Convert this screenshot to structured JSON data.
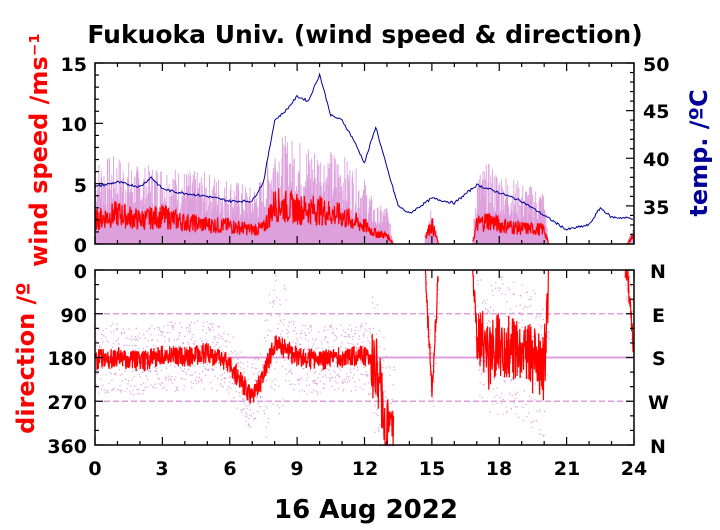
{
  "chart_data": {
    "type": "line",
    "title": "Fukuoka Univ. (wind speed & direction)",
    "xlabel": "16 Aug 2022",
    "x_ticks": [
      "0",
      "3",
      "6",
      "9",
      "12",
      "15",
      "18",
      "21",
      "24"
    ],
    "xlim": [
      0,
      24
    ],
    "panels": [
      {
        "name": "wind",
        "ylabel": "wind speed /ms⁻¹",
        "ylim": [
          0,
          15
        ],
        "y_ticks": [
          "0",
          "5",
          "10",
          "15"
        ],
        "y2label": "temp. /ºC",
        "y2lim": [
          31,
          50
        ],
        "y2_ticks": [
          "35",
          "40",
          "45",
          "50"
        ],
        "colors": {
          "gust": "#dda0dd",
          "speed": "#ff0000",
          "temperature": "#000099"
        },
        "gust": {
          "x": [
            0,
            1,
            2,
            3,
            4,
            5,
            6,
            7,
            7.5,
            8,
            9,
            10,
            11,
            12,
            12.5,
            13,
            13.3,
            14.5,
            15,
            15.3,
            16.8,
            17,
            17.5,
            18,
            19,
            20,
            20.2,
            23.7,
            24
          ],
          "y": [
            5.2,
            5.5,
            4.8,
            5.0,
            4.6,
            4.4,
            4.1,
            3.5,
            4.2,
            6.8,
            6.5,
            6.0,
            5.6,
            4.1,
            2.3,
            2.5,
            0,
            0,
            2.9,
            0,
            0,
            4.5,
            5.0,
            4.6,
            3.8,
            3.4,
            0,
            0,
            1.6
          ]
        },
        "speed": {
          "x": [
            0,
            1,
            2,
            3,
            4,
            5,
            6,
            7,
            7.5,
            8,
            9,
            10,
            11,
            12,
            12.5,
            13,
            13.3,
            14.5,
            15,
            15.3,
            16.8,
            17,
            17.5,
            18,
            19,
            20,
            20.2,
            23.7,
            24
          ],
          "y": [
            2.0,
            2.5,
            2.0,
            2.3,
            1.8,
            1.6,
            1.5,
            1.2,
            1.3,
            3.3,
            2.9,
            2.8,
            2.3,
            1.5,
            0.9,
            0.7,
            0,
            0,
            1.6,
            0,
            0,
            1.6,
            2.0,
            1.6,
            1.3,
            1.2,
            0,
            0,
            0.8
          ]
        },
        "temperature": {
          "x": [
            0,
            1,
            2,
            2.5,
            3,
            3.5,
            5,
            6,
            7,
            7.5,
            8,
            8.5,
            9,
            9.5,
            10,
            10.5,
            11,
            11.5,
            12,
            12.5,
            13,
            13.5,
            14,
            15,
            16,
            17,
            18,
            19,
            20,
            21,
            22,
            22.5,
            23,
            24
          ],
          "y": [
            37.0,
            37.5,
            37.0,
            38.0,
            36.8,
            36.5,
            36.0,
            35.5,
            35.5,
            37.5,
            44.0,
            45.0,
            46.5,
            46.0,
            48.8,
            44.5,
            44.0,
            42.0,
            39.5,
            43.3,
            39.0,
            35.0,
            34.2,
            35.8,
            35.3,
            37.2,
            36.4,
            35.5,
            34.0,
            32.5,
            33.0,
            34.8,
            33.8,
            33.7
          ]
        }
      },
      {
        "name": "direction",
        "ylabel": "direction /º",
        "ylim": [
          0,
          360
        ],
        "y_ticks": [
          "0",
          "90",
          "180",
          "270",
          "360"
        ],
        "y2_ticks": [
          "N",
          "E",
          "S",
          "W",
          "N"
        ],
        "colors": {
          "instant": "#dda0dd",
          "mean": "#ff0000"
        },
        "mean": {
          "x": [
            0,
            1,
            2,
            3,
            4,
            5,
            6,
            6.5,
            7,
            7.5,
            8,
            9,
            10,
            11,
            12,
            12.5,
            13,
            13.3,
            14.7,
            15,
            15.3,
            16.8,
            17,
            17.5,
            18,
            19,
            20,
            20.2,
            23.7,
            24
          ],
          "y": [
            185,
            180,
            190,
            175,
            180,
            170,
            195,
            230,
            260,
            220,
            150,
            180,
            185,
            180,
            175,
            200,
            320,
            330,
            0,
            250,
            0,
            0,
            120,
            180,
            150,
            170,
            200,
            0,
            0,
            175
          ]
        }
      }
    ]
  }
}
